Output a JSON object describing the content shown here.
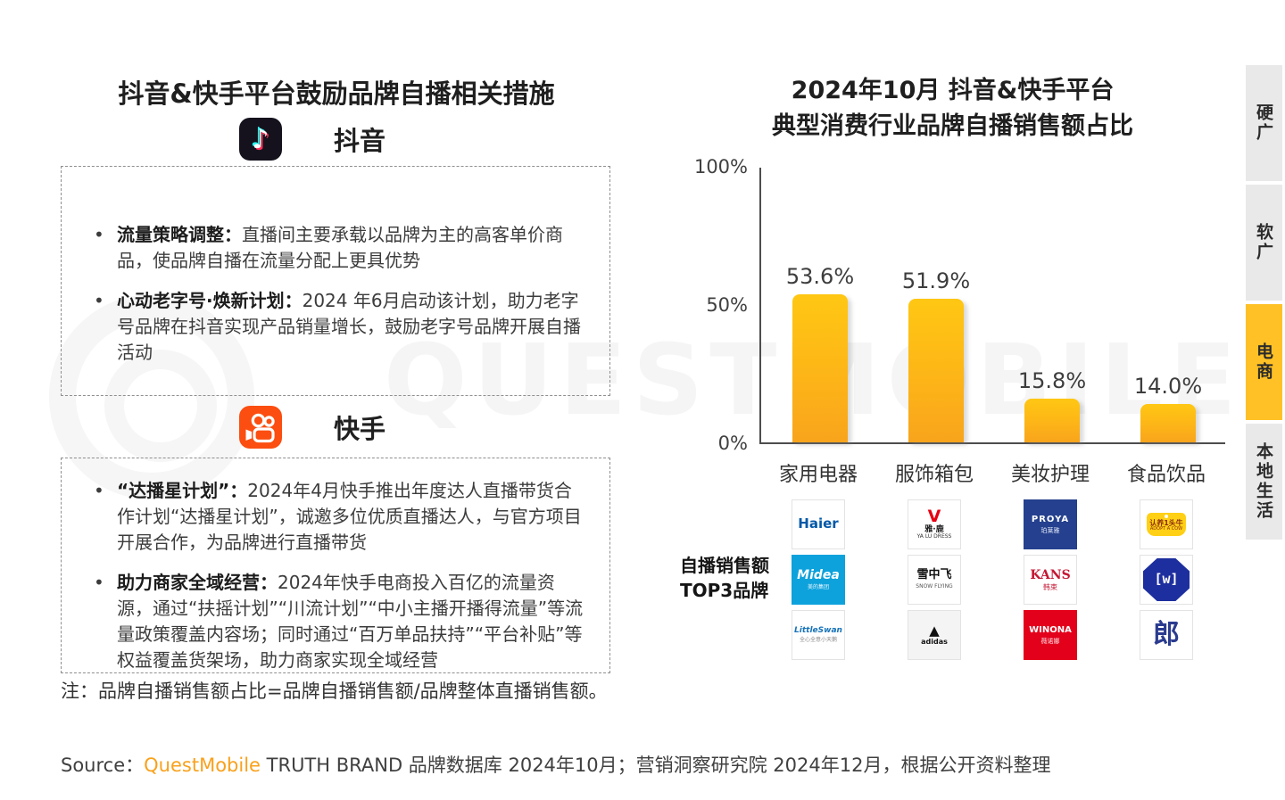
{
  "colors": {
    "accent_yellow": "#FFC125",
    "bar_gradient_top": "#FFC713",
    "bar_gradient_bottom": "#F8A41C",
    "kuaishou_orange": "#FB4E10",
    "douyin_dark": "#15121e",
    "source_brand_orange": "#F9A11B",
    "tab_grey": "#E9E9E9"
  },
  "watermark": {
    "text": "QUESTMOBILE"
  },
  "icons": {
    "douyin": "music-note-app-icon",
    "kuaishou": "video-camera-app-icon"
  },
  "left_panel": {
    "title": "抖音&快手平台鼓励品牌自播相关措施",
    "douyin_label": "抖音",
    "douyin_points": [
      {
        "heading": "流量策略调整：",
        "body": "直播间主要承载以品牌为主的高客单价商品，使品牌自播在流量分配上更具优势"
      },
      {
        "heading": "心动老字号·焕新计划：",
        "body": "2024 年6月启动该计划，助力老字号品牌在抖音实现产品销量增长，鼓励老字号品牌开展自播活动"
      }
    ],
    "kuaishou_label": "快手",
    "kuaishou_points": [
      {
        "heading": "“达播星计划”：",
        "body": "2024年4月快手推出年度达人直播带货合作计划“达播星计划”，诚邀多位优质直播达人，与官方项目开展合作，为品牌进行直播带货"
      },
      {
        "heading": "助力商家全域经营：",
        "body": "2024年快手电商投入百亿的流量资源，通过“扶摇计划”“川流计划”“中小主播开播得流量”等流量政策覆盖内容场；同时通过“百万单品扶持”“平台补贴”等权益覆盖货架场，助力商家实现全域经营"
      }
    ],
    "note": "注：品牌自播销售额占比=品牌自播销售额/品牌整体直播销售额。"
  },
  "chart_data": {
    "type": "bar",
    "title_line1": "2024年10月 抖音&快手平台",
    "title_line2": "典型消费行业品牌自播销售额占比",
    "categories": [
      "家用电器",
      "服饰箱包",
      "美妆护理",
      "食品饮品"
    ],
    "values": [
      53.6,
      51.9,
      15.8,
      14.0
    ],
    "value_labels": [
      "53.6%",
      "51.9%",
      "15.8%",
      "14.0%"
    ],
    "ylim": [
      0,
      100
    ],
    "yticks": [
      {
        "label": "100%",
        "value": 100
      },
      {
        "label": "50%",
        "value": 50
      },
      {
        "label": "0%",
        "value": 0
      }
    ],
    "grid": false,
    "legend": "none",
    "bar_color": "gold gradient #FFC713 → #F8A41C"
  },
  "brands": {
    "row_label_line1": "自播销售额",
    "row_label_line2": "TOP3品牌",
    "tiles": [
      {
        "kind": "haier",
        "name": "Haier 海尔",
        "lines": [
          "Haier"
        ]
      },
      {
        "kind": "yalu",
        "name": "雅鹿",
        "lines": [
          "V",
          "雅·鹿",
          "YA LU DRESS"
        ]
      },
      {
        "kind": "proya",
        "name": "珀莱雅",
        "lines": [
          "PROYA",
          "珀莱雅"
        ]
      },
      {
        "kind": "adopt",
        "name": "认养1头牛",
        "lines": [
          "认养1头牛",
          "ADOPT A COW"
        ]
      },
      {
        "kind": "midea",
        "name": "Midea 美的",
        "lines": [
          "Midea",
          "美的集团"
        ]
      },
      {
        "kind": "xuezhongfei",
        "name": "雪中飞",
        "lines": [
          "雪中飞",
          "SNOW FLYING"
        ]
      },
      {
        "kind": "kans",
        "name": "KANS 韩束",
        "lines": [
          "KANS",
          "韩束"
        ]
      },
      {
        "kind": "wbadge",
        "name": "W品牌",
        "lines": [
          "[w]"
        ]
      },
      {
        "kind": "littleswan",
        "name": "小天鹅",
        "lines": [
          "LittleSwan",
          "全心全意小天鹅"
        ]
      },
      {
        "kind": "adidas",
        "name": "adidas",
        "lines": [
          "▲",
          "adidas"
        ]
      },
      {
        "kind": "winona",
        "name": "薇诺娜",
        "lines": [
          "WINONA",
          "薇诺娜"
        ]
      },
      {
        "kind": "lang",
        "name": "郎酒",
        "lines": [
          "郎"
        ]
      }
    ]
  },
  "sidebar": {
    "items": [
      {
        "label": "硬广",
        "active": false
      },
      {
        "label": "软广",
        "active": false
      },
      {
        "label": "电商",
        "active": true
      },
      {
        "label": "本地生活",
        "active": false
      }
    ]
  },
  "source": {
    "prefix": "Source：",
    "brand": "QuestMobile",
    "rest": " TRUTH BRAND 品牌数据库 2024年10月；营销洞察研究院 2024年12月，根据公开资料整理"
  }
}
